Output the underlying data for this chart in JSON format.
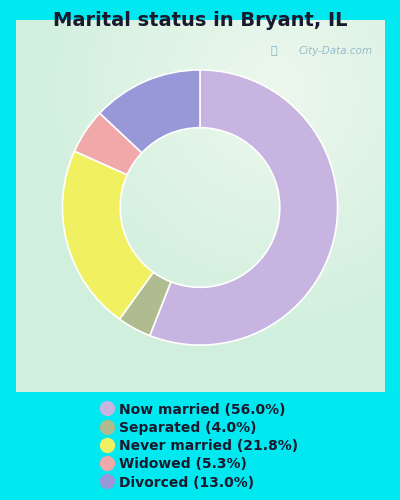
{
  "title": "Marital status in Bryant, IL",
  "title_fontsize": 14,
  "title_fontweight": "bold",
  "background_outer": "#00e8f0",
  "background_inner_color": "#d8f0e0",
  "watermark": "City-Data.com",
  "slices": [
    {
      "label": "Now married (56.0%)",
      "value": 56.0,
      "color": "#c8b4e0"
    },
    {
      "label": "Separated (4.0%)",
      "value": 4.0,
      "color": "#b0bc90"
    },
    {
      "label": "Never married (21.8%)",
      "value": 21.8,
      "color": "#f0f060"
    },
    {
      "label": "Widowed (5.3%)",
      "value": 5.3,
      "color": "#f0a8a8"
    },
    {
      "label": "Divorced (13.0%)",
      "value": 13.0,
      "color": "#9898d8"
    }
  ],
  "donut_width": 0.42,
  "legend_fontsize": 10,
  "startangle": 90
}
